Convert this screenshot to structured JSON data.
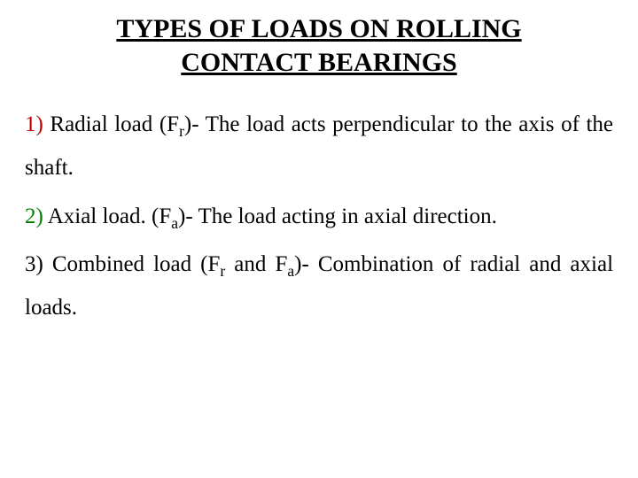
{
  "title": {
    "line1": "TYPES OF LOADS ON ROLLING",
    "line2": "CONTACT BEARINGS"
  },
  "items": [
    {
      "num": "1)",
      "num_color": "num-red",
      "pre": " Radial load (F",
      "sub": "r",
      "post": ")- The load acts perpendicular to the axis of the shaft."
    },
    {
      "num": "2)",
      "num_color": "num-green",
      "pre": " Axial load. (F",
      "sub": "a",
      "post": ")- The load acting in axial direction."
    },
    {
      "num": "3)",
      "num_color": "num-black",
      "pre": " Combined load (F",
      "sub": "r",
      "mid": " and F",
      "sub2": "a",
      "post": ")- Combination of radial and axial loads."
    }
  ]
}
